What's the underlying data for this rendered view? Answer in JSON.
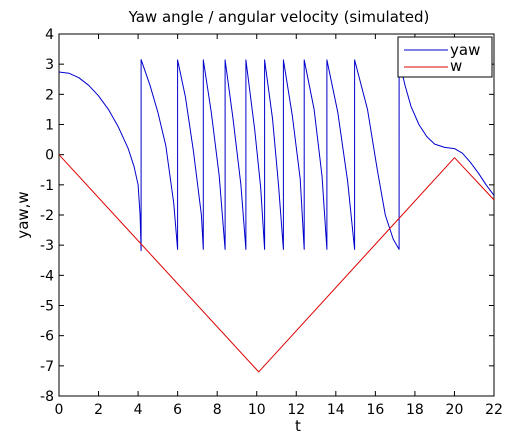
{
  "chart_data": {
    "type": "line",
    "title": "Yaw angle / angular velocity (simulated)",
    "xlabel": "t",
    "ylabel": "yaw,w",
    "xlim": [
      0,
      22
    ],
    "ylim": [
      -8,
      4
    ],
    "xticks": [
      "0",
      "2",
      "4",
      "6",
      "8",
      "10",
      "12",
      "14",
      "16",
      "18",
      "20",
      "22"
    ],
    "yticks": [
      "4",
      "3",
      "2",
      "1",
      "0",
      "-1",
      "-2",
      "-3",
      "-4",
      "-5",
      "-6",
      "-7",
      "-8"
    ],
    "grid": false,
    "legend": "top-right",
    "series": [
      {
        "name": "yaw",
        "color": "#0000cc",
        "points": [
          [
            0,
            2.74
          ],
          [
            0.5,
            2.7
          ],
          [
            1.0,
            2.55
          ],
          [
            1.5,
            2.3
          ],
          [
            2.0,
            1.95
          ],
          [
            2.5,
            1.5
          ],
          [
            3.0,
            0.92
          ],
          [
            3.5,
            0.2
          ],
          [
            3.8,
            -0.4
          ],
          [
            4.0,
            -1.0
          ],
          [
            4.1,
            -2.0
          ],
          [
            4.15,
            -3.18
          ],
          [
            4.15,
            3.15
          ],
          [
            4.6,
            2.3
          ],
          [
            5.0,
            1.4
          ],
          [
            5.4,
            0.3
          ],
          [
            5.8,
            -1.6
          ],
          [
            6.0,
            -3.14
          ],
          [
            6.0,
            3.14
          ],
          [
            6.4,
            1.9
          ],
          [
            6.8,
            0.1
          ],
          [
            7.2,
            -2.0
          ],
          [
            7.3,
            -3.14
          ],
          [
            7.3,
            3.14
          ],
          [
            7.7,
            1.4
          ],
          [
            8.1,
            -0.7
          ],
          [
            8.4,
            -3.14
          ],
          [
            8.4,
            3.14
          ],
          [
            8.8,
            1.2
          ],
          [
            9.2,
            -1.0
          ],
          [
            9.45,
            -3.14
          ],
          [
            9.45,
            3.14
          ],
          [
            9.9,
            0.8
          ],
          [
            10.2,
            -1.1
          ],
          [
            10.4,
            -3.14
          ],
          [
            10.4,
            3.14
          ],
          [
            10.8,
            1.2
          ],
          [
            11.1,
            -1.0
          ],
          [
            11.35,
            -3.14
          ],
          [
            11.35,
            3.14
          ],
          [
            11.8,
            1.3
          ],
          [
            12.2,
            -0.8
          ],
          [
            12.4,
            -3.14
          ],
          [
            12.4,
            3.14
          ],
          [
            12.9,
            1.5
          ],
          [
            13.3,
            -0.7
          ],
          [
            13.55,
            -3.14
          ],
          [
            13.55,
            3.14
          ],
          [
            14.1,
            1.4
          ],
          [
            14.6,
            -0.9
          ],
          [
            14.95,
            -3.14
          ],
          [
            14.95,
            3.14
          ],
          [
            15.6,
            1.5
          ],
          [
            16.1,
            -0.5
          ],
          [
            16.5,
            -2.0
          ],
          [
            16.9,
            -2.8
          ],
          [
            17.2,
            -3.14
          ],
          [
            17.2,
            3.14
          ],
          [
            17.5,
            2.3
          ],
          [
            17.8,
            1.6
          ],
          [
            18.2,
            1.0
          ],
          [
            18.6,
            0.6
          ],
          [
            19.0,
            0.35
          ],
          [
            19.5,
            0.24
          ],
          [
            20.0,
            0.2
          ],
          [
            20.4,
            0.05
          ],
          [
            20.8,
            -0.25
          ],
          [
            21.2,
            -0.6
          ],
          [
            21.6,
            -1.0
          ],
          [
            22.0,
            -1.35
          ]
        ]
      },
      {
        "name": "w",
        "color": "#dd0000",
        "points": [
          [
            0,
            0
          ],
          [
            10.1,
            -7.2
          ],
          [
            20.0,
            -0.1
          ],
          [
            22.0,
            -1.5
          ]
        ]
      }
    ]
  }
}
